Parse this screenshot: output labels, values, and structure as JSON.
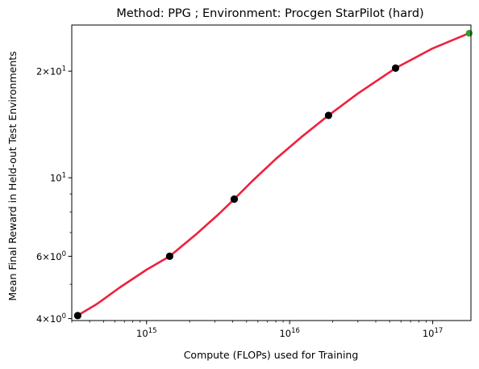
{
  "chart_data": {
    "type": "line",
    "title": "Method: PPG ; Environment: Procgen StarPilot (hard)",
    "xlabel": "Compute (FLOPs) used for Training",
    "ylabel": "Mean Final Reward in Held-out Test Environments",
    "xscale": "log",
    "yscale": "log",
    "xlim": [
      300000000000000.0,
      1.85e+17
    ],
    "ylim": [
      3.95,
      27.0
    ],
    "x_ticks": [
      {
        "value": 1000000000000000.0,
        "base": "10",
        "exp": "15"
      },
      {
        "value": 1e+16,
        "base": "10",
        "exp": "16"
      },
      {
        "value": 1e+17,
        "base": "10",
        "exp": "17"
      }
    ],
    "y_ticks": [
      {
        "value": 4,
        "coef": "4",
        "base": "10",
        "exp": "0"
      },
      {
        "value": 6,
        "coef": "6",
        "base": "10",
        "exp": "0"
      },
      {
        "value": 10,
        "coef": "",
        "base": "10",
        "exp": "1"
      },
      {
        "value": 20,
        "coef": "2",
        "base": "10",
        "exp": "1"
      }
    ],
    "grid": false,
    "colors": {
      "fit_line": "#f0203c",
      "points": "#000000",
      "final_point": "#2ca02c"
    },
    "series": [
      {
        "kind": "fit",
        "x": [
          330000000000000.0,
          450000000000000.0,
          650000000000000.0,
          1000000000000000.0,
          1450000000000000.0,
          2200000000000000.0,
          3200000000000000.0,
          4100000000000000.0,
          5500000000000000.0,
          8000000000000000.0,
          1.2e+16,
          1.87e+16,
          3e+16,
          5.5e+16,
          1e+17,
          1.8e+17
        ],
        "y": [
          4.08,
          4.4,
          4.9,
          5.5,
          6.0,
          6.9,
          7.9,
          8.7,
          9.8,
          11.3,
          13.0,
          15.0,
          17.3,
          20.4,
          23.2,
          25.6
        ]
      },
      {
        "kind": "points",
        "x": [
          330000000000000.0,
          1450000000000000.0,
          4100000000000000.0,
          1.87e+16,
          5.5e+16
        ],
        "y": [
          4.08,
          6.0,
          8.7,
          15.0,
          20.4
        ]
      },
      {
        "kind": "final-point",
        "x": [
          1.8e+17
        ],
        "y": [
          25.6
        ]
      }
    ]
  }
}
